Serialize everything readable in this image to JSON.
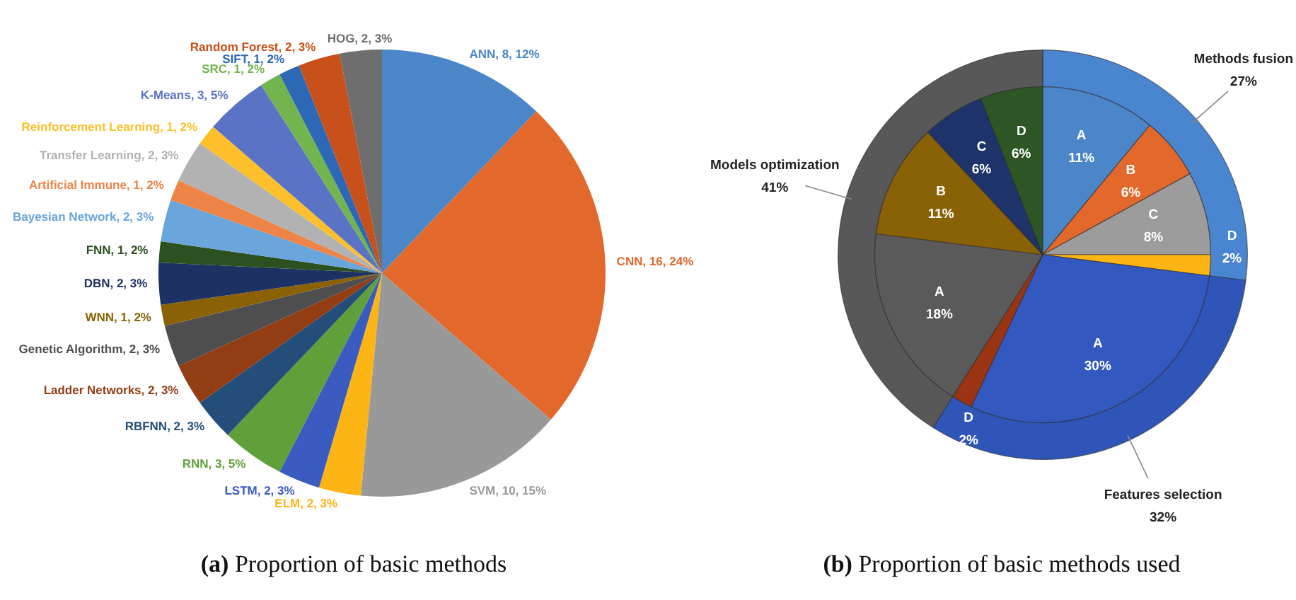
{
  "chart_data": [
    {
      "type": "pie",
      "title": "(a) Proportion of basic methods",
      "categories": [
        "ANN",
        "CNN",
        "SVM",
        "ELM",
        "LSTM",
        "RNN",
        "RBFNN",
        "Ladder Networks",
        "Genetic Algorithm",
        "WNN",
        "DBN",
        "FNN",
        "Bayesian Network",
        "Artificial Immune",
        "Transfer Learning",
        "Reinforcement Learning",
        "K-Means",
        "SRC",
        "SIFT",
        "Random Forest",
        "HOG"
      ],
      "values": [
        8,
        16,
        10,
        2,
        2,
        3,
        2,
        2,
        2,
        1,
        2,
        1,
        2,
        1,
        2,
        1,
        3,
        1,
        1,
        2,
        2
      ],
      "value_labels": [
        "8, 12%",
        "16, 24%",
        "10, 15%",
        "2, 3%",
        "2, 3%",
        "3, 5%",
        "2, 3%",
        "2, 3%",
        "2, 3%",
        "1, 2%",
        "2, 3%",
        "1, 2%",
        "2, 3%",
        "1, 2%",
        "2, 3%",
        "1, 2%",
        "3, 5%",
        "1, 2%",
        "1, 2%",
        "2, 3%",
        "2, 3%"
      ],
      "colors": [
        "#4a86c8",
        "#e3682b",
        "#999999",
        "#fdb415",
        "#3a5cc0",
        "#5fa03a",
        "#234e7a",
        "#923d14",
        "#4e4e4e",
        "#8a6205",
        "#1d3263",
        "#2d5020",
        "#6aa5dc",
        "#ee8447",
        "#b2b2b2",
        "#fdc02c",
        "#5a73c4",
        "#72b54f",
        "#2c68b5",
        "#c8501a",
        "#6e6e6e"
      ]
    },
    {
      "type": "pie",
      "title": "(b) Proportion of basic methods used",
      "categories": [
        "A",
        "B",
        "C",
        "D",
        "A",
        "D",
        "A",
        "B",
        "C",
        "D"
      ],
      "values": [
        11,
        6,
        8,
        2,
        30,
        2,
        18,
        11,
        6,
        6
      ],
      "value_labels": [
        "11%",
        "6%",
        "8%",
        "2%",
        "30%",
        "2%",
        "18%",
        "11%",
        "6%",
        "6%"
      ],
      "colors": [
        "#4a86c8",
        "#e3682b",
        "#9c9c9c",
        "#fdb415",
        "#3358c0",
        "#9a3412",
        "#5a5a5a",
        "#8a6206",
        "#1e336a",
        "#2e5624"
      ]
    },
    {
      "type": "donut",
      "categories": [
        "Methods fusion",
        "Features selection",
        "Models optimization"
      ],
      "values": [
        27,
        32,
        41
      ],
      "value_labels": [
        "27%",
        "32%",
        "41%"
      ],
      "colors": [
        "#4a86d0",
        "#2f55b8",
        "#585858"
      ]
    }
  ]
}
